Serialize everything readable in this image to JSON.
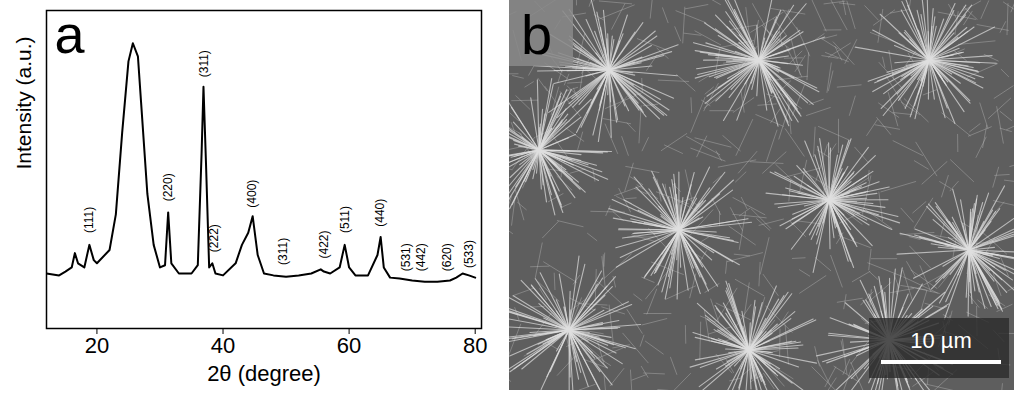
{
  "chart_data": {
    "type": "line",
    "panel": "a",
    "x_label": "2θ (degree)",
    "y_label": "Intensity (a.u.)",
    "color": "#000000",
    "grid": false,
    "tick_labels": "x",
    "xlim": [
      12,
      81
    ],
    "xticks": [
      20,
      40,
      60,
      80
    ],
    "ylim": [
      0,
      100
    ],
    "yticks": [],
    "x": [
      12,
      14,
      15,
      16,
      16.5,
      17,
      18,
      18.8,
      19.5,
      20,
      22,
      23,
      24,
      25,
      25.7,
      26.5,
      27,
      28,
      29,
      30,
      30.8,
      31.3,
      31.8,
      33,
      35,
      36,
      36.6,
      36.9,
      37.3,
      37.8,
      38.3,
      38.8,
      40,
      42,
      43,
      44,
      44.7,
      45.5,
      46.5,
      48,
      50,
      52,
      54,
      55.5,
      56,
      57,
      58.5,
      59.3,
      60,
      61,
      63,
      64.5,
      65,
      65.5,
      66.5,
      68,
      70,
      72,
      74,
      76,
      77,
      78,
      79,
      80
    ],
    "values": [
      17.3,
      16.7,
      17.9,
      19.2,
      23.7,
      20.5,
      19.2,
      26.3,
      21.5,
      20.5,
      24.7,
      35.9,
      61.5,
      84.0,
      89.7,
      85.6,
      71.2,
      42.3,
      26.3,
      19.2,
      19.9,
      36.5,
      20.5,
      17.3,
      17.3,
      19.9,
      55.1,
      76.0,
      51.9,
      19.2,
      20.5,
      17.3,
      16.7,
      20.5,
      26.3,
      30.1,
      35.3,
      23.1,
      17.3,
      16.7,
      16.3,
      16.7,
      17.3,
      18.6,
      17.9,
      17.3,
      19.2,
      26.3,
      19.2,
      16.7,
      16.7,
      23.1,
      28.8,
      19.2,
      16.0,
      15.7,
      15.1,
      14.7,
      14.7,
      15.1,
      16.0,
      17.3,
      16.7,
      16.0
    ],
    "annotations": [
      {
        "x": 18.8,
        "y": 30,
        "text": "(111)"
      },
      {
        "x": 31.3,
        "y": 40,
        "text": "(220)"
      },
      {
        "x": 37.0,
        "y": 79,
        "text": "(311)"
      },
      {
        "x": 38.6,
        "y": 24,
        "text": "(222)"
      },
      {
        "x": 44.7,
        "y": 38,
        "text": "(400)"
      },
      {
        "x": 49.5,
        "y": 20,
        "text": "(311)"
      },
      {
        "x": 56.0,
        "y": 22,
        "text": "(422)"
      },
      {
        "x": 59.3,
        "y": 30,
        "text": "(511)"
      },
      {
        "x": 65.0,
        "y": 32,
        "text": "(440)"
      },
      {
        "x": 69.0,
        "y": 18,
        "text": "(531)"
      },
      {
        "x": 71.5,
        "y": 18,
        "text": "(442)"
      },
      {
        "x": 75.5,
        "y": 18,
        "text": "(620)"
      },
      {
        "x": 79.0,
        "y": 19,
        "text": "(533)"
      }
    ]
  },
  "image": {
    "panel": "b",
    "scale_bar": "10 µm"
  }
}
